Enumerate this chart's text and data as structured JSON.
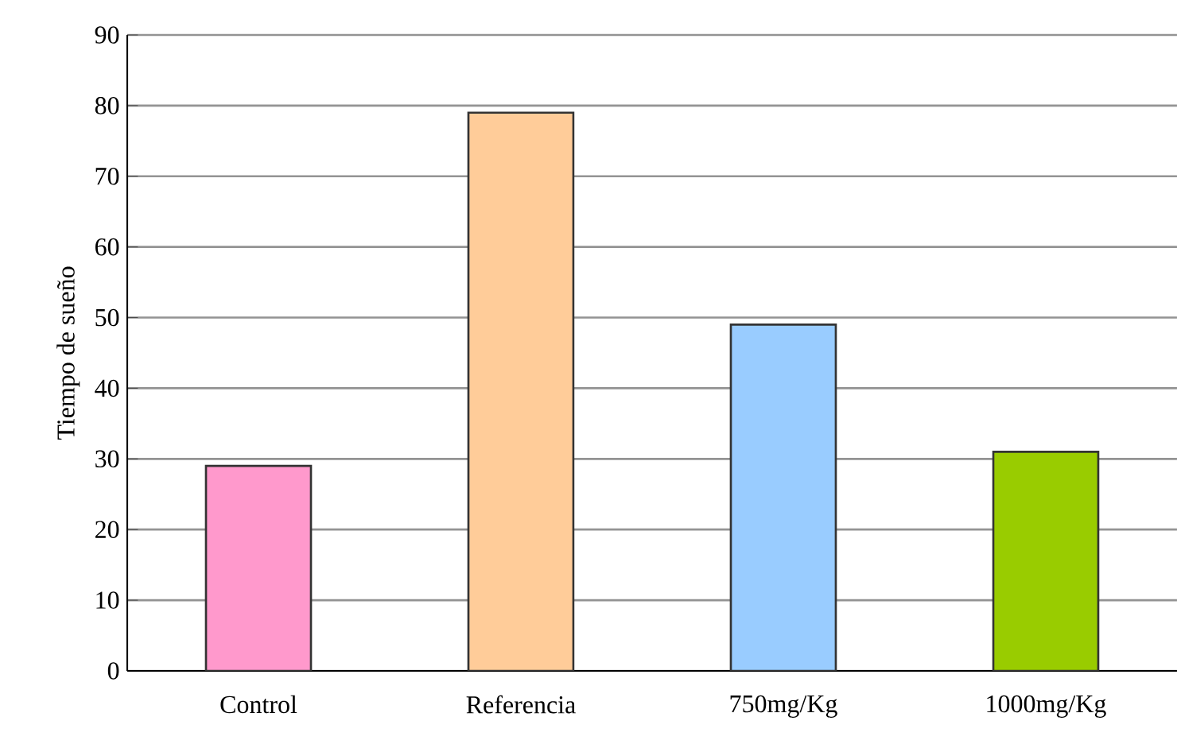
{
  "chart_data": {
    "type": "bar",
    "ylabel": "Tiempo de sueño",
    "categories": [
      "Control",
      "Referencia",
      "750mg/Kg",
      "1000mg/Kg"
    ],
    "values": [
      29,
      79,
      49,
      31
    ],
    "colors": [
      "#ff99cc",
      "#ffcc99",
      "#99ccff",
      "#99cc00"
    ],
    "ylim": [
      0,
      90
    ],
    "yticks": [
      0,
      10,
      20,
      30,
      40,
      50,
      60,
      70,
      80,
      90
    ],
    "grid": "y",
    "legend": false
  }
}
